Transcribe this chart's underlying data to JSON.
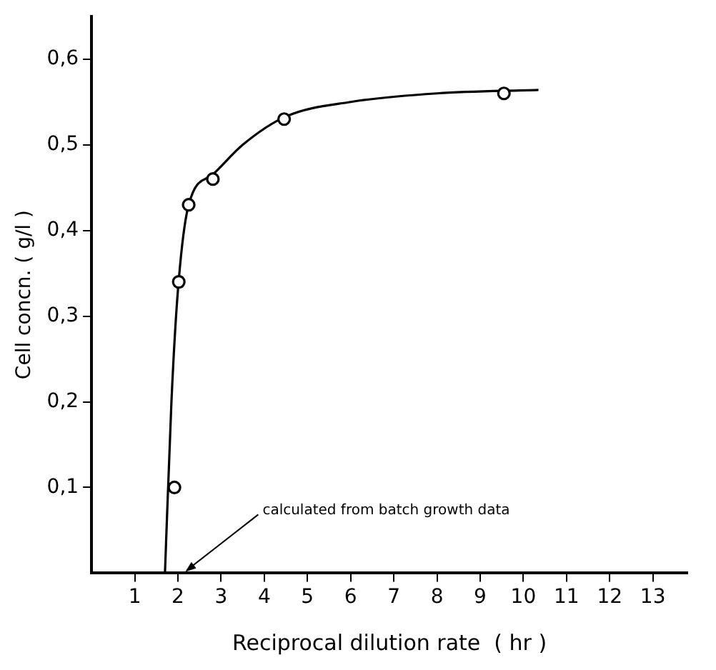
{
  "chart_data": {
    "type": "scatter",
    "xlabel": "Reciprocal dilution rate  ( hr )",
    "ylabel": "Cell concn. ( g/l )",
    "xlim": [
      0,
      13.8
    ],
    "xticks": [
      1,
      2,
      3,
      4,
      5,
      6,
      7,
      8,
      9,
      10,
      11,
      12,
      13
    ],
    "ylim": [
      0,
      0.65
    ],
    "yticks": [
      {
        "value": 0.1,
        "label": "0,1"
      },
      {
        "value": 0.2,
        "label": "0,2"
      },
      {
        "value": 0.3,
        "label": "0,3"
      },
      {
        "value": 0.4,
        "label": "0,4"
      },
      {
        "value": 0.5,
        "label": "0,5"
      },
      {
        "value": 0.6,
        "label": "0,6"
      }
    ],
    "grid": false,
    "legend": false,
    "series": [
      {
        "type": "line",
        "color": "#000000",
        "marker": "none",
        "line_style": "solid",
        "x": [
          1.7,
          1.85,
          2.0,
          2.25,
          2.8,
          3.5,
          4.5,
          6,
          8,
          10.35
        ],
        "values": [
          0,
          0.2,
          0.33,
          0.43,
          0.465,
          0.5,
          0.533,
          0.55,
          0.56,
          0.564
        ]
      },
      {
        "type": "scatter",
        "color": "#000000",
        "marker": "circle",
        "x": [
          1.92,
          2.02,
          2.25,
          2.81,
          4.46,
          9.55
        ],
        "values": [
          0.1,
          0.34,
          0.43,
          0.46,
          0.53,
          0.56
        ]
      }
    ],
    "annotations": [
      "calculated from batch growth data"
    ]
  }
}
